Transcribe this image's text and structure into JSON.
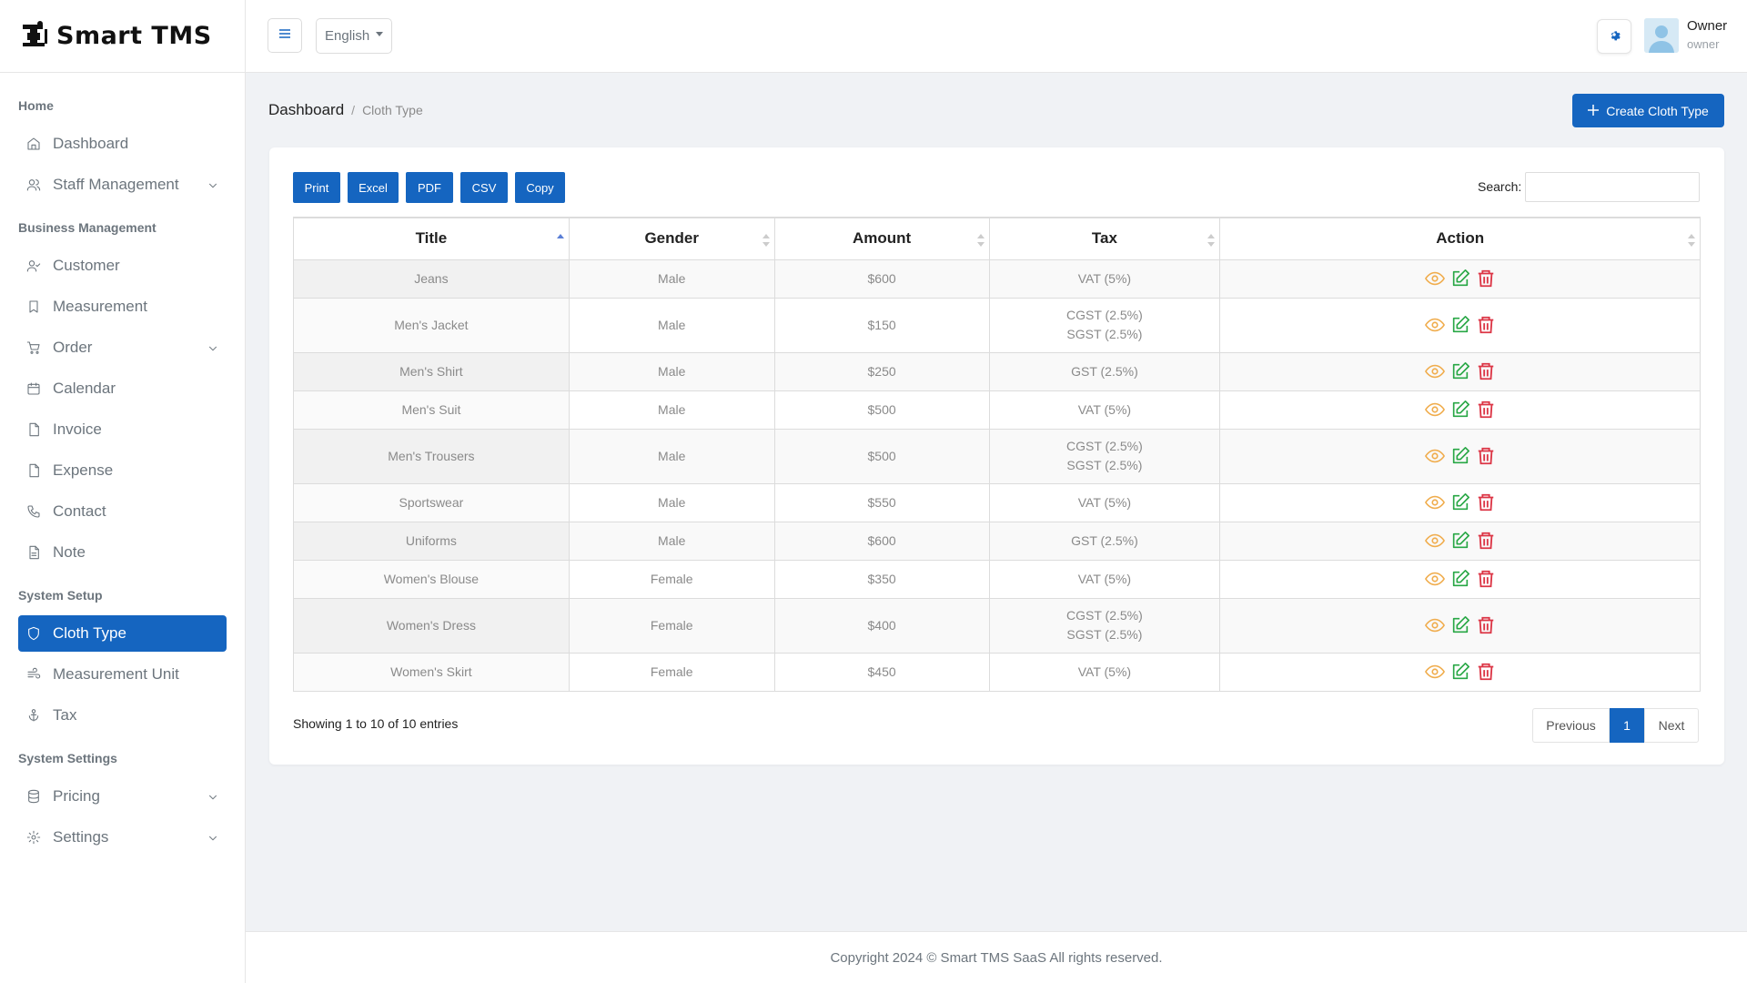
{
  "brand": {
    "name": "Smart TMS"
  },
  "sidebar": {
    "sections": [
      {
        "heading": "Home",
        "items": [
          {
            "label": "Dashboard",
            "icon": "home-icon"
          },
          {
            "label": "Staff Management",
            "icon": "users-icon",
            "expandable": true
          }
        ]
      },
      {
        "heading": "Business Management",
        "items": [
          {
            "label": "Customer",
            "icon": "user-check-icon"
          },
          {
            "label": "Measurement",
            "icon": "bookmark-icon"
          },
          {
            "label": "Order",
            "icon": "cart-icon",
            "expandable": true
          },
          {
            "label": "Calendar",
            "icon": "calendar-icon"
          },
          {
            "label": "Invoice",
            "icon": "file-icon"
          },
          {
            "label": "Expense",
            "icon": "file-icon"
          },
          {
            "label": "Contact",
            "icon": "phone-icon"
          },
          {
            "label": "Note",
            "icon": "file-text-icon"
          }
        ]
      },
      {
        "heading": "System Setup",
        "items": [
          {
            "label": "Cloth Type",
            "icon": "shield-icon",
            "active": true
          },
          {
            "label": "Measurement Unit",
            "icon": "wind-icon"
          },
          {
            "label": "Tax",
            "icon": "anchor-icon"
          }
        ]
      },
      {
        "heading": "System Settings",
        "items": [
          {
            "label": "Pricing",
            "icon": "database-icon",
            "expandable": true
          },
          {
            "label": "Settings",
            "icon": "gear-icon",
            "expandable": true
          }
        ]
      }
    ]
  },
  "topbar": {
    "language": "English",
    "user": {
      "name": "Owner",
      "role": "owner"
    }
  },
  "breadcrumb": {
    "home": "Dashboard",
    "separator": "/",
    "current": "Cloth Type"
  },
  "create_button": {
    "label": "Create Cloth Type"
  },
  "export_buttons": [
    "Print",
    "Excel",
    "PDF",
    "CSV",
    "Copy"
  ],
  "search": {
    "label": "Search:",
    "value": ""
  },
  "table": {
    "columns": [
      "Title",
      "Gender",
      "Amount",
      "Tax",
      "Action"
    ],
    "rows": [
      {
        "title": "Jeans",
        "gender": "Male",
        "amount": "$600",
        "tax": [
          "VAT (5%)"
        ]
      },
      {
        "title": "Men's Jacket",
        "gender": "Male",
        "amount": "$150",
        "tax": [
          "CGST (2.5%)",
          "SGST (2.5%)"
        ]
      },
      {
        "title": "Men's Shirt",
        "gender": "Male",
        "amount": "$250",
        "tax": [
          "GST (2.5%)"
        ]
      },
      {
        "title": "Men's Suit",
        "gender": "Male",
        "amount": "$500",
        "tax": [
          "VAT (5%)"
        ]
      },
      {
        "title": "Men's Trousers",
        "gender": "Male",
        "amount": "$500",
        "tax": [
          "CGST (2.5%)",
          "SGST (2.5%)"
        ]
      },
      {
        "title": "Sportswear",
        "gender": "Male",
        "amount": "$550",
        "tax": [
          "VAT (5%)"
        ]
      },
      {
        "title": "Uniforms",
        "gender": "Male",
        "amount": "$600",
        "tax": [
          "GST (2.5%)"
        ]
      },
      {
        "title": "Women's Blouse",
        "gender": "Female",
        "amount": "$350",
        "tax": [
          "VAT (5%)"
        ]
      },
      {
        "title": "Women's Dress",
        "gender": "Female",
        "amount": "$400",
        "tax": [
          "CGST (2.5%)",
          "SGST (2.5%)"
        ]
      },
      {
        "title": "Women's Skirt",
        "gender": "Female",
        "amount": "$450",
        "tax": [
          "VAT (5%)"
        ]
      }
    ]
  },
  "table_info": "Showing 1 to 10 of 10 entries",
  "pagination": {
    "previous": "Previous",
    "current": "1",
    "next": "Next"
  },
  "footer": {
    "text": "Copyright 2024 © Smart TMS SaaS All rights reserved."
  },
  "colors": {
    "primary": "#1565c0",
    "view": "#f0ad4e",
    "edit": "#28a745",
    "delete": "#dc3545"
  }
}
